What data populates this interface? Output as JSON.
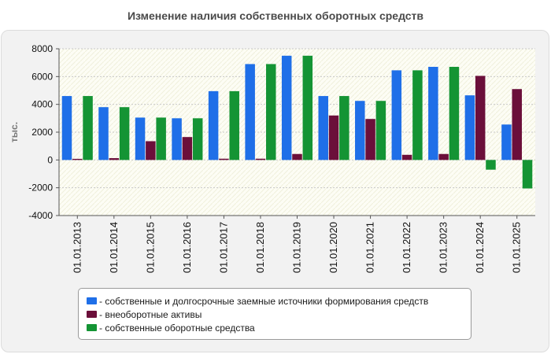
{
  "chart_data": {
    "type": "bar",
    "title": "Изменение наличия собственных оборотных средств",
    "ylabel": "тыс.",
    "xlabel": "",
    "ylim": [
      -4000,
      8000
    ],
    "yticks": [
      -4000,
      -2000,
      0,
      2000,
      4000,
      6000,
      8000
    ],
    "categories": [
      "01.01.2013",
      "01.01.2014",
      "01.01.2015",
      "01.01.2016",
      "01.01.2017",
      "01.01.2018",
      "01.01.2019",
      "01.01.2020",
      "01.01.2021",
      "01.01.2022",
      "01.01.2023",
      "01.01.2024",
      "01.01.2025"
    ],
    "series": [
      {
        "name": "- собственные и долгосрочные заемные источники формирования средств",
        "color": "#1f6fe8",
        "values": [
          4600,
          3800,
          3050,
          3000,
          4950,
          6900,
          7500,
          4600,
          4250,
          6450,
          6700,
          4650,
          2550
        ]
      },
      {
        "name": "- внеоборотные активы",
        "color": "#6b0f3a",
        "values": [
          80,
          130,
          1350,
          1650,
          90,
          90,
          430,
          3200,
          2950,
          370,
          430,
          6050,
          5100
        ]
      },
      {
        "name": "- собственные оборотные средства",
        "color": "#149434",
        "values": [
          4600,
          3800,
          3050,
          3000,
          4950,
          6900,
          7500,
          4600,
          4250,
          6450,
          6700,
          -700,
          -2050
        ]
      }
    ],
    "legend_position": "bottom"
  }
}
